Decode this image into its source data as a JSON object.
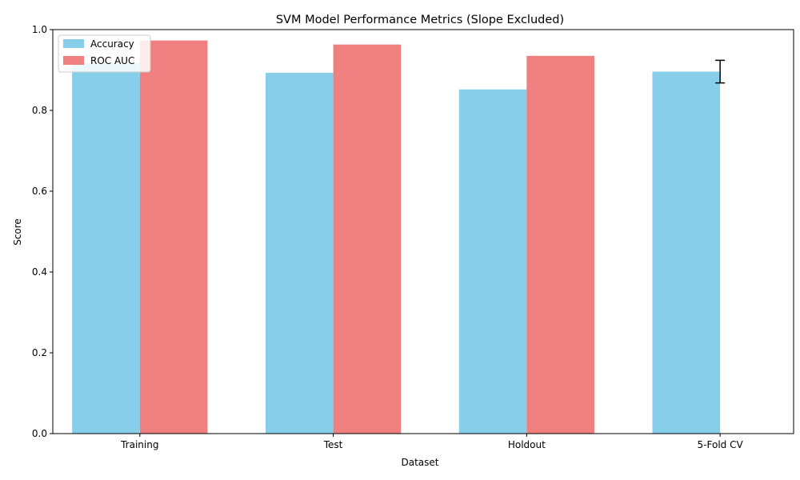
{
  "chart_data": {
    "type": "bar",
    "title": "SVM Model Performance Metrics (Slope Excluded)",
    "xlabel": "Dataset",
    "ylabel": "Score",
    "ylim": [
      0,
      1.0
    ],
    "yticks": [
      "0.0",
      "0.2",
      "0.4",
      "0.6",
      "0.8",
      "1.0"
    ],
    "categories": [
      "Training",
      "Test",
      "Holdout",
      "5-Fold CV"
    ],
    "series": [
      {
        "name": "Accuracy",
        "color": "#87CEEB",
        "values": [
          0.918,
          0.893,
          0.852,
          0.896
        ],
        "error": [
          null,
          null,
          null,
          0.028
        ]
      },
      {
        "name": "ROC AUC",
        "color": "#F08080",
        "values": [
          0.973,
          0.963,
          0.935,
          null
        ]
      }
    ],
    "legend_position": "top-left",
    "grid": false
  }
}
